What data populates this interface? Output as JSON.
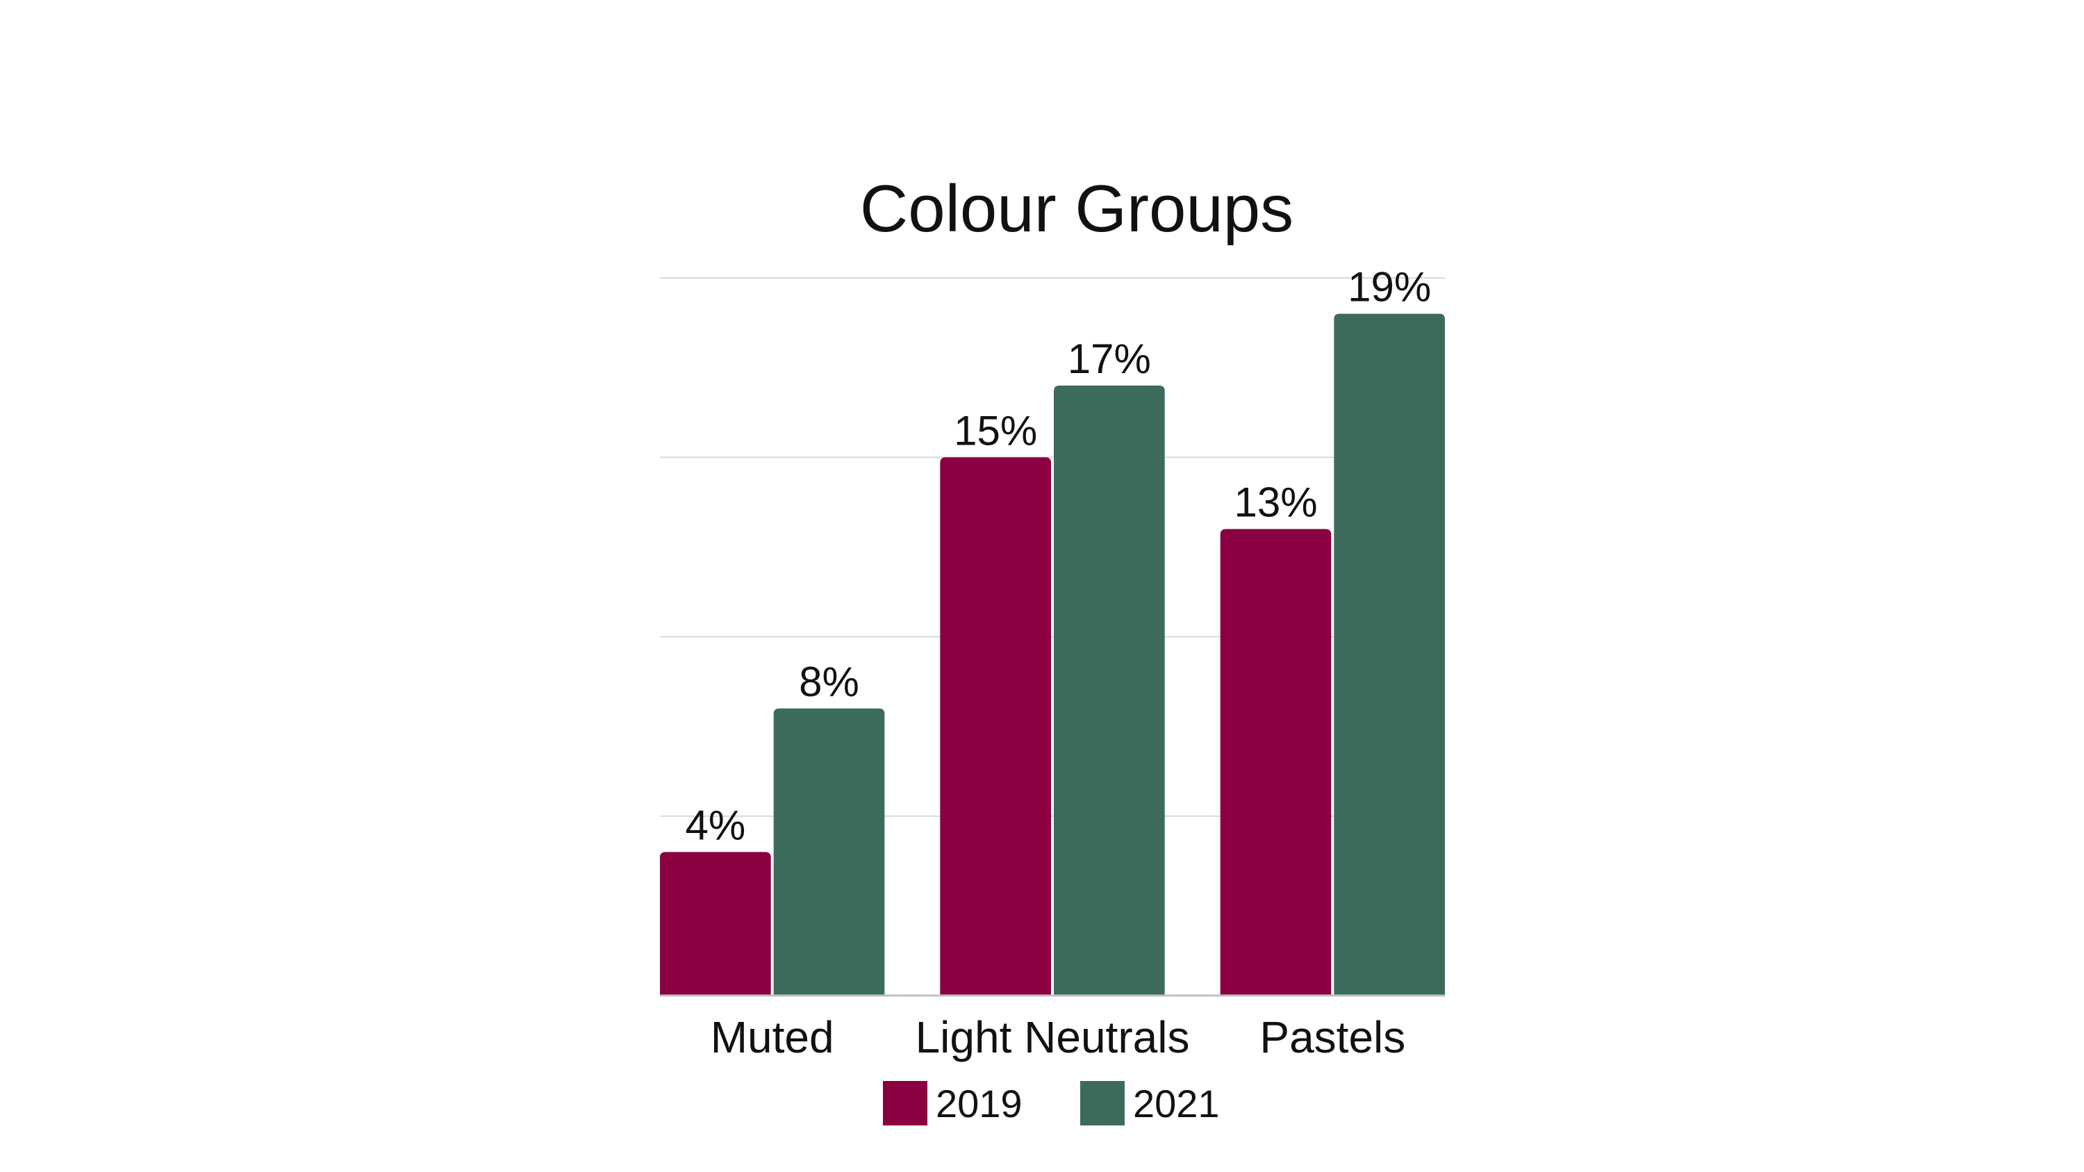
{
  "chart_data": {
    "type": "bar",
    "title": "Colour Groups",
    "categories": [
      "Muted",
      "Light Neutrals",
      "Pastels"
    ],
    "series": [
      {
        "name": "2019",
        "color": "#8a0040",
        "values": [
          4,
          15,
          13
        ],
        "labels": [
          "4%",
          "15%",
          "13%"
        ]
      },
      {
        "name": "2021",
        "color": "#3d6b5b",
        "values": [
          8,
          17,
          19
        ],
        "labels": [
          "8%",
          "17%",
          "19%"
        ]
      }
    ],
    "xlabel": "",
    "ylabel": "",
    "ylim": [
      0,
      20
    ],
    "grid": true,
    "legend": "bottom"
  }
}
